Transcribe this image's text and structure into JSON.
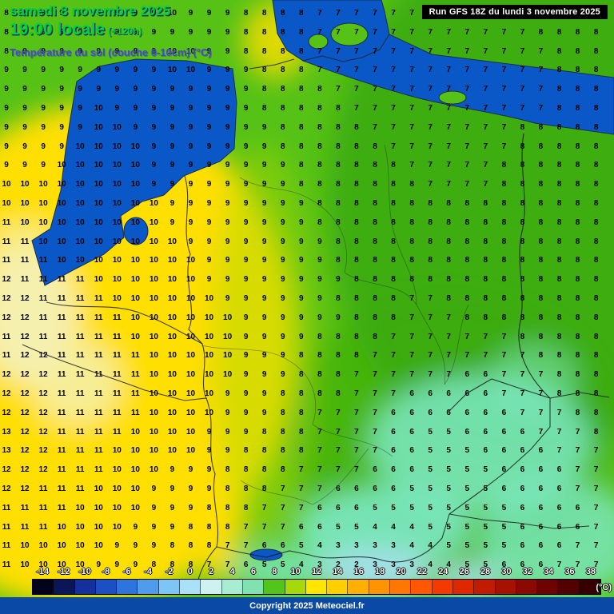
{
  "header": {
    "date": "samedi 8 novembre 2025",
    "time": "19:00 locale",
    "offset": "(+120h)",
    "title": "Température du sol (couche 0-10cm) (°C)",
    "run_info": "Run GFS 18Z du lundi 3 novembre 2025",
    "date_color": "#00d23c",
    "title_color": "#4545d8"
  },
  "map_colors": {
    "sea": "#0a58c8",
    "land_green": "#56c216",
    "land_green_dark": "#3aa90c",
    "land_yellow_green": "#a8d80a",
    "land_yellow": "#ffdf00",
    "land_yellow_pale": "#f6f0ae",
    "land_cyan": "#7de9c6",
    "land_blue_pale": "#a8e0f4",
    "border": "#141414",
    "coast": "#1c2b45"
  },
  "map_grid": {
    "rows": [
      "8 8 9 9 9 9 9 9 9 10 9 9 9 8 8 8 8 7 7 7 7 7 7 7 7 7 7 7 8 8 8 8 8",
      "8 9 9 9 9 9 9 9 9 9 9 9 9 8 8 8 8 7 7 7 7 7 7 7 7 7 7 7 7 8 8 8 8",
      "8 9 9 9 9 9 9 9 9 10 10 9 9 8 8 8 8 7 7 7 7 7 7 7 7 7 7 7 7 7 8 8 8",
      "9 9 9 9 9 9 9 9 9 10 10 9 9 9 8 8 8 7 7 7 7 7 7 7 7 7 7 7 7 7 8 8 8",
      "9 9 9 9 9 9 9 9 9 9 9 9 9 9 8 8 8 8 7 7 7 7 7 7 7 7 7 7 7 7 8 8 8",
      "9 9 9 9 9 10 9 9 9 9 9 9 9 9 8 8 8 8 8 7 7 7 7 7 7 7 7 7 7 7 8 8 8",
      "9 9 9 9 9 10 10 9 9 9 9 9 9 9 9 8 8 8 8 8 7 7 7 7 7 7 7 7 8 8 8 8 8",
      "9 9 9 9 10 10 10 10 9 9 9 9 9 9 9 8 8 8 8 8 8 7 7 7 7 7 7 7 8 8 8 8 8",
      "9 9 9 10 10 10 10 10 9 9 9 9 9 9 9 9 8 8 8 8 8 8 7 7 7 7 7 8 8 8 8 8 8",
      "10 10 10 10 10 10 10 10 9 9 9 9 9 9 9 9 8 8 8 8 8 8 8 7 7 7 7 8 8 8 8 8 8",
      "10 10 10 10 10 10 10 10 10 9 9 9 9 9 9 9 9 8 8 8 8 8 8 8 8 8 8 8 8 8 8 8 8",
      "11 10 10 10 10 10 10 10 10 9 9 9 9 9 9 9 9 8 8 8 8 8 8 8 8 8 8 8 8 8 8 8 8",
      "11 11 10 10 10 10 10 10 10 10 9 9 9 9 9 9 9 9 8 8 8 8 8 8 8 8 8 8 8 8 8 8 8",
      "11 11 11 10 10 10 10 10 10 10 10 9 9 9 9 9 9 9 8 8 8 8 8 8 8 8 8 8 8 8 8 8 8",
      "12 11 11 11 11 10 10 10 10 10 10 9 9 9 9 9 9 9 9 8 8 8 8 8 8 8 8 8 8 8 8 8 8",
      "12 12 11 11 11 11 10 10 10 10 10 10 9 9 9 9 9 9 8 8 8 8 7 7 8 8 8 8 8 8 8 8 8",
      "12 12 11 11 11 11 11 10 10 10 10 10 10 9 9 9 9 9 9 8 8 8 7 7 7 8 8 8 8 8 8 8 8",
      "11 12 11 11 11 11 11 10 10 10 10 10 10 9 9 9 9 8 8 8 8 7 7 7 7 7 7 7 8 8 8 8 8",
      "11 12 12 11 11 11 11 11 10 10 10 10 10 9 9 9 8 8 8 8 7 7 7 7 7 7 7 7 7 8 8 8 8",
      "12 12 12 11 11 11 11 11 10 10 10 10 10 9 9 9 8 8 8 7 7 7 7 7 7 6 6 7 7 7 8 8 8",
      "12 12 12 11 11 11 11 11 10 10 10 10 9 9 9 8 8 8 8 7 7 7 6 6 6 6 6 7 7 7 8 8 8",
      "12 12 12 11 11 11 11 11 10 10 10 10 9 9 9 8 8 7 7 7 7 6 6 6 6 6 6 6 7 7 7 8 8",
      "13 12 12 11 11 11 11 10 10 10 10 9 9 9 8 8 8 7 7 7 7 6 6 5 5 6 6 6 6 7 7 7 8",
      "13 12 12 11 11 11 10 10 10 10 10 9 9 8 8 8 8 7 7 7 7 6 6 5 5 5 6 6 6 6 7 7 7",
      "12 12 12 11 11 11 10 10 10 9 9 9 8 8 8 8 7 7 7 7 6 6 6 5 5 5 5 6 6 6 6 7 7",
      "12 12 11 11 11 10 10 10 9 9 9 9 8 8 8 7 7 7 6 6 6 6 5 5 5 5 5 6 6 6 6 7 7",
      "11 11 11 11 10 10 10 10 9 9 9 8 8 8 7 7 7 6 6 6 5 5 5 5 5 5 5 5 6 6 6 6 7",
      "11 11 11 10 10 10 10 9 9 9 8 8 8 7 7 7 6 6 5 5 4 4 4 5 5 5 5 5 6 6 6 6 7",
      "11 10 10 10 10 10 9 9 9 8 8 8 7 7 6 6 5 4 3 3 3 3 4 4 5 5 5 5 6 6 6 7 7",
      "11 10 10 10 10 9 9 9 8 8 8 7 7 6 5 5 4 3 2 2 3 3 3 4 4 5 5 6 6 6 7 7 7"
    ]
  },
  "legend": {
    "values": [
      "-14",
      "-12",
      "-10",
      "-8",
      "-6",
      "-4",
      "-2",
      "0",
      "2",
      "4",
      "6",
      "8",
      "10",
      "12",
      "14",
      "16",
      "18",
      "20",
      "22",
      "24",
      "26",
      "28",
      "30",
      "32",
      "34",
      "36",
      "38"
    ],
    "colors": [
      "#03031c",
      "#0a1657",
      "#13309c",
      "#1d4fc4",
      "#2f74dd",
      "#4f9cec",
      "#7cc5f4",
      "#a9e2f8",
      "#cef2f0",
      "#a8ecd4",
      "#7fe2b0",
      "#52c41c",
      "#a6d80a",
      "#ffe600",
      "#ffcf00",
      "#ffb000",
      "#ff9300",
      "#ff7600",
      "#ff5800",
      "#f43a00",
      "#dd2800",
      "#c21c00",
      "#a61200",
      "#8a0900",
      "#6e0400",
      "#520100",
      "#360000"
    ],
    "unit": "(°C)"
  },
  "footer": {
    "copyright": "Copyright 2025 Meteociel.fr"
  }
}
